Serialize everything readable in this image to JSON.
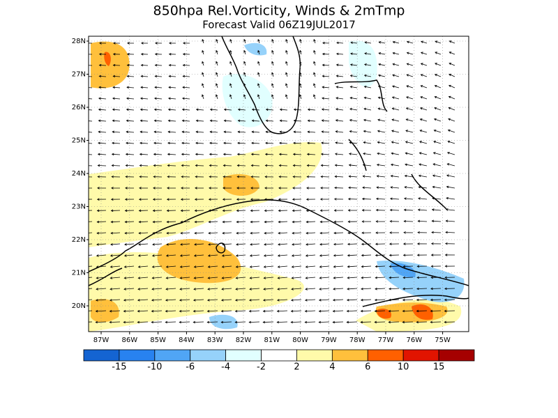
{
  "title": "850hpa Rel.Vorticity, Winds & 2mTmp",
  "subtitle": "Forecast Valid  06Z19JUL2017",
  "lat_labels": [
    "28N",
    "27N",
    "26N",
    "25N",
    "24N",
    "23N",
    "22N",
    "21N",
    "20N"
  ],
  "lon_labels": [
    "87W",
    "86W",
    "85W",
    "84W",
    "83W",
    "82W",
    "81W",
    "80W",
    "79W",
    "78W",
    "77W",
    "76W",
    "75W"
  ],
  "colorbar": {
    "labels": [
      "-15",
      "-10",
      "-6",
      "-4",
      "-2",
      "2",
      "4",
      "6",
      "10",
      "15"
    ],
    "colors": [
      "#1464d2",
      "#2882f0",
      "#50a5f5",
      "#96d2fa",
      "#e1ffff",
      "#ffffff",
      "#fffaaa",
      "#ffc03c",
      "#ff6000",
      "#e11400",
      "#a50000"
    ]
  }
}
